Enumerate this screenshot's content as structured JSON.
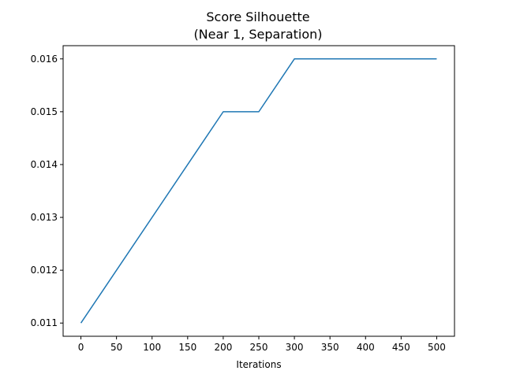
{
  "chart_data": {
    "type": "line",
    "title_line1": "Score Silhouette",
    "title_line2": "(Near 1, Separation)",
    "xlabel": "Iterations",
    "ylabel": "",
    "xlim": [
      -25,
      525
    ],
    "ylim": [
      0.01075,
      0.01625
    ],
    "x_ticks": [
      0,
      50,
      100,
      150,
      200,
      250,
      300,
      350,
      400,
      450,
      500
    ],
    "x_tick_labels": [
      "0",
      "50",
      "100",
      "150",
      "200",
      "250",
      "300",
      "350",
      "400",
      "450",
      "500"
    ],
    "y_ticks": [
      0.011,
      0.012,
      0.013,
      0.014,
      0.015,
      0.016
    ],
    "y_tick_labels": [
      "0.011",
      "0.012",
      "0.013",
      "0.014",
      "0.015",
      "0.016"
    ],
    "grid": false,
    "series": [
      {
        "color": "#1f77b4",
        "x": [
          0,
          200,
          250,
          300,
          500
        ],
        "y": [
          0.011,
          0.015,
          0.015,
          0.016,
          0.016
        ]
      }
    ]
  }
}
